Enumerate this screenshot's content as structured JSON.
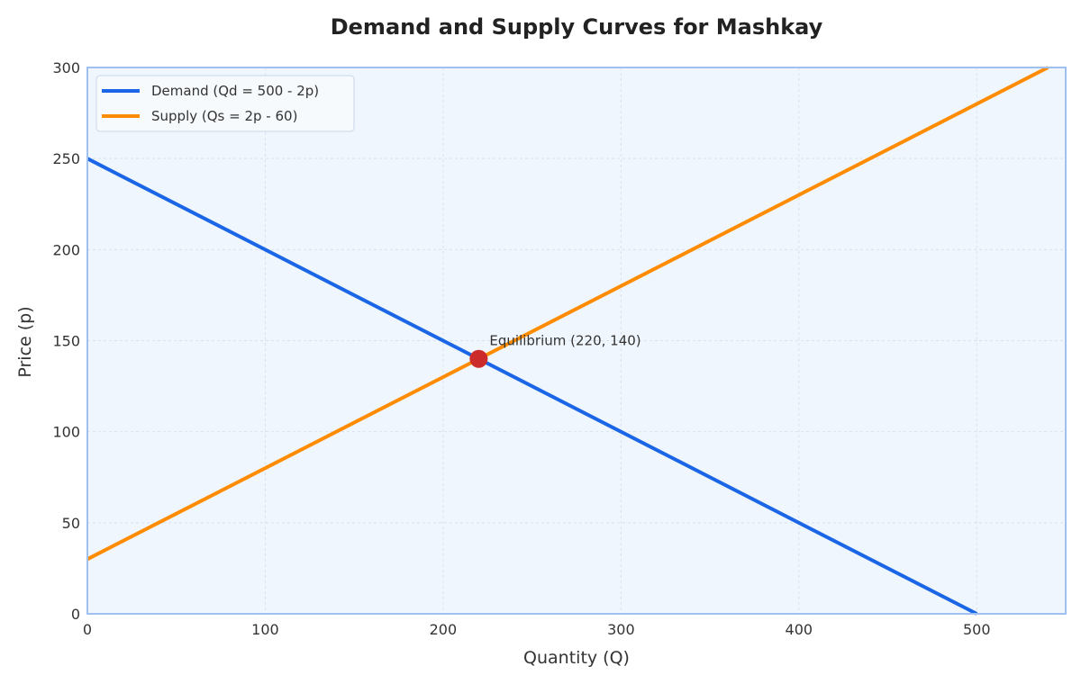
{
  "chart_data": {
    "type": "line",
    "title": "Demand and Supply Curves for Mashkay",
    "xlabel": "Quantity (Q)",
    "ylabel": "Price (p)",
    "xlim": [
      0,
      550
    ],
    "ylim": [
      0,
      300
    ],
    "x_ticks": [
      0,
      100,
      200,
      300,
      400,
      500
    ],
    "y_ticks": [
      0,
      50,
      100,
      150,
      200,
      250,
      300
    ],
    "grid": true,
    "legend_position": "top-left",
    "series": [
      {
        "name": "Demand (Qd = 500 - 2p)",
        "color": "#1a66e6",
        "points": [
          [
            0,
            250
          ],
          [
            500,
            0
          ]
        ]
      },
      {
        "name": "Supply (Qs = 2p - 60)",
        "color": "#ff8c00",
        "points": [
          [
            0,
            30
          ],
          [
            540,
            300
          ]
        ]
      }
    ],
    "annotations": [
      {
        "label": "Equilibrium (220, 140)",
        "x": 220,
        "y": 140,
        "marker_color": "#cc2b2b"
      }
    ],
    "colors": {
      "plot_background": "#f0f6fd",
      "frame": "#a0c0f0",
      "grid": "#d8e2ee"
    }
  }
}
